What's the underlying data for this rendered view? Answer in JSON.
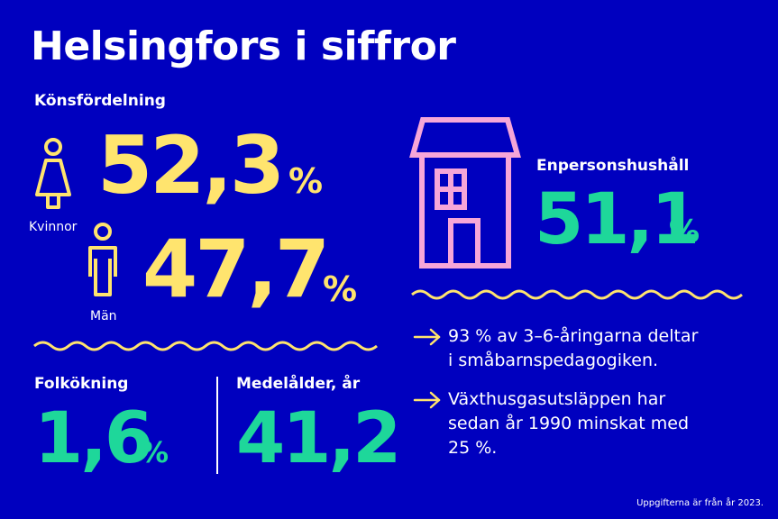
{
  "title": "Helsingfors i siffror",
  "gender": {
    "heading": "Könsfördelning",
    "women": {
      "value": "52,3",
      "unit": "%",
      "label": "Kvinnor"
    },
    "men": {
      "value": "47,7",
      "unit": "%",
      "label": "Män"
    }
  },
  "single_households": {
    "heading": "Enpersonshushåll",
    "value": "51,1",
    "unit": "%"
  },
  "population_growth": {
    "heading": "Folkökning",
    "value": "1,6",
    "unit": "%"
  },
  "median_age": {
    "heading": "Medelålder, år",
    "value": "41,2"
  },
  "facts": [
    {
      "line1": "93 % av 3–6-åringarna deltar",
      "line2": "i småbarnspedagogiken."
    },
    {
      "line1": "Växthusgasutsläppen har",
      "line2": "sedan år 1990 minskat med",
      "line3": "25 %."
    }
  ],
  "footnote": "Uppgifterna är från år 2023.",
  "colors": {
    "background": "#0000bf",
    "yellow": "#ffe46e",
    "green": "#1ed79a",
    "pink": "#f6a6d8",
    "white": "#ffffff"
  },
  "icons": [
    "woman-icon",
    "man-icon",
    "house-icon",
    "arrow-right-icon"
  ]
}
